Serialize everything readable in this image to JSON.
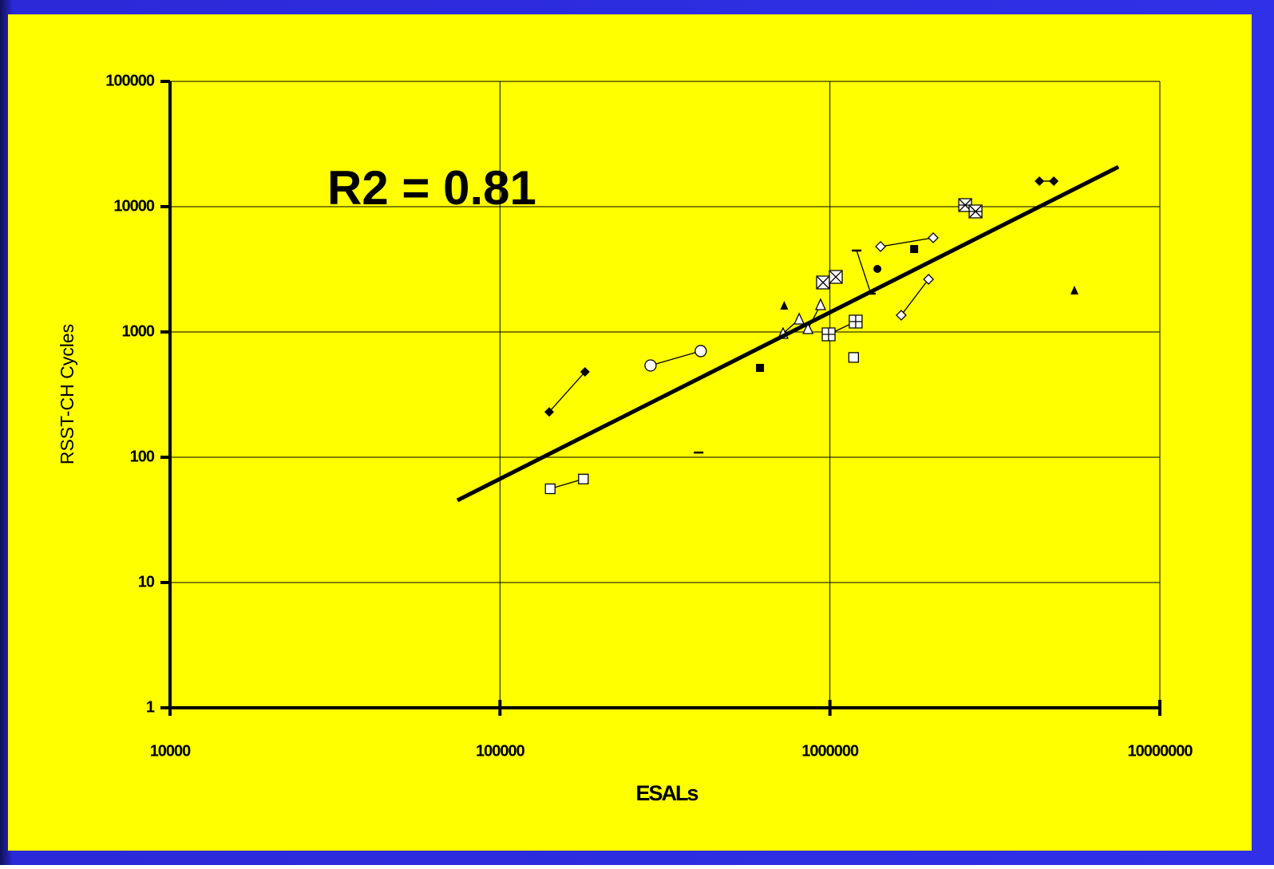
{
  "chart_data": {
    "type": "scatter",
    "xlabel": "ESALs",
    "ylabel": "RSST-CH Cycles",
    "annotation": "R2 = 0.81",
    "xscale": "log",
    "yscale": "log",
    "xlim": [
      10000,
      10000000
    ],
    "ylim": [
      1,
      100000
    ],
    "xticks": [
      10000,
      100000,
      1000000,
      10000000
    ],
    "yticks": [
      1,
      10,
      100,
      1000,
      10000,
      100000
    ],
    "grid": true,
    "color": "#000000",
    "series": [
      {
        "marker": "diamond-filled",
        "connected": true,
        "x": [
          141000,
          181000
        ],
        "y": [
          230,
          480
        ]
      },
      {
        "marker": "square-open",
        "connected": true,
        "x": [
          142000,
          179000
        ],
        "y": [
          56,
          67
        ]
      },
      {
        "marker": "circle-open",
        "connected": true,
        "x": [
          286000,
          406000
        ],
        "y": [
          540,
          704
        ]
      },
      {
        "marker": "dash",
        "connected": false,
        "x": [
          400000
        ],
        "y": [
          109
        ]
      },
      {
        "marker": "square-filled",
        "connected": false,
        "x": [
          614000,
          1800000
        ],
        "y": [
          517,
          4590
        ]
      },
      {
        "marker": "triangle-open",
        "connected": true,
        "x": [
          721000,
          807000,
          858000,
          937000
        ],
        "y": [
          971,
          1265,
          1060,
          1647
        ]
      },
      {
        "marker": "triangle-filled",
        "connected": false,
        "x": [
          727000,
          5510000
        ],
        "y": [
          1623,
          2144
        ]
      },
      {
        "marker": "x-box",
        "connected": true,
        "x": [
          953000,
          1042000
        ],
        "y": [
          2483,
          2750
        ]
      },
      {
        "marker": "plus-box",
        "connected": true,
        "x": [
          991000,
          1197000
        ],
        "y": [
          957,
          1210
        ]
      },
      {
        "marker": "square-open",
        "connected": false,
        "x": [
          1180000
        ],
        "y": [
          626
        ]
      },
      {
        "marker": "dash",
        "connected": true,
        "x": [
          1205000,
          1331000
        ],
        "y": [
          4464,
          2022
        ]
      },
      {
        "marker": "circle-filled",
        "connected": false,
        "x": [
          1393000
        ],
        "y": [
          3185
        ]
      },
      {
        "marker": "diamond-open",
        "connected": true,
        "x": [
          1424000,
          2056000
        ],
        "y": [
          4805,
          5645
        ]
      },
      {
        "marker": "diamond-open",
        "connected": true,
        "x": [
          1645000,
          1990000
        ],
        "y": [
          1361,
          2632
        ]
      },
      {
        "marker": "asterisk",
        "connected": true,
        "x": [
          2570000,
          2763000
        ],
        "y": [
          10300,
          9160
        ]
      },
      {
        "marker": "diamond-filled",
        "connected": true,
        "x": [
          4315000,
          4770000
        ],
        "y": [
          16000,
          16000
        ]
      }
    ],
    "trendline": {
      "x": [
        74300,
        7490000
      ],
      "y": [
        45.3,
        20800
      ]
    }
  }
}
